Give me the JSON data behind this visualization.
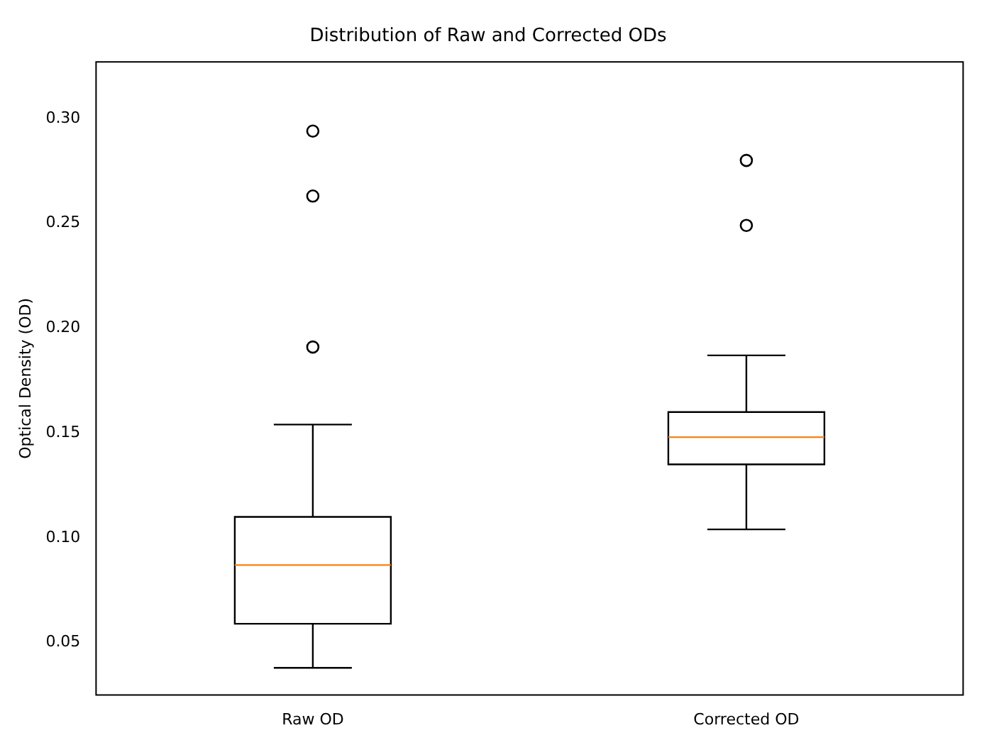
{
  "chart_data": {
    "type": "box",
    "title": "Distribution of Raw and Corrected ODs",
    "ylabel": "Optical Density (OD)",
    "categories": [
      "Raw OD",
      "Corrected OD"
    ],
    "boxes": [
      {
        "low": 0.038,
        "q1": 0.059,
        "median": 0.087,
        "q3": 0.11,
        "high": 0.154,
        "outliers": [
          0.191,
          0.263,
          0.294
        ]
      },
      {
        "low": 0.104,
        "q1": 0.135,
        "median": 0.148,
        "q3": 0.16,
        "high": 0.187,
        "outliers": [
          0.249,
          0.28
        ]
      }
    ],
    "color": "#000000",
    "ylim": [
      0.025,
      0.327
    ],
    "yticks": [
      {
        "value": 0.05,
        "label": "0.05"
      },
      {
        "value": 0.1,
        "label": "0.10"
      },
      {
        "value": 0.15,
        "label": "0.15"
      },
      {
        "value": 0.2,
        "label": "0.20"
      },
      {
        "value": 0.25,
        "label": "0.25"
      },
      {
        "value": 0.3,
        "label": "0.30"
      }
    ],
    "grid": false,
    "legend": false
  }
}
